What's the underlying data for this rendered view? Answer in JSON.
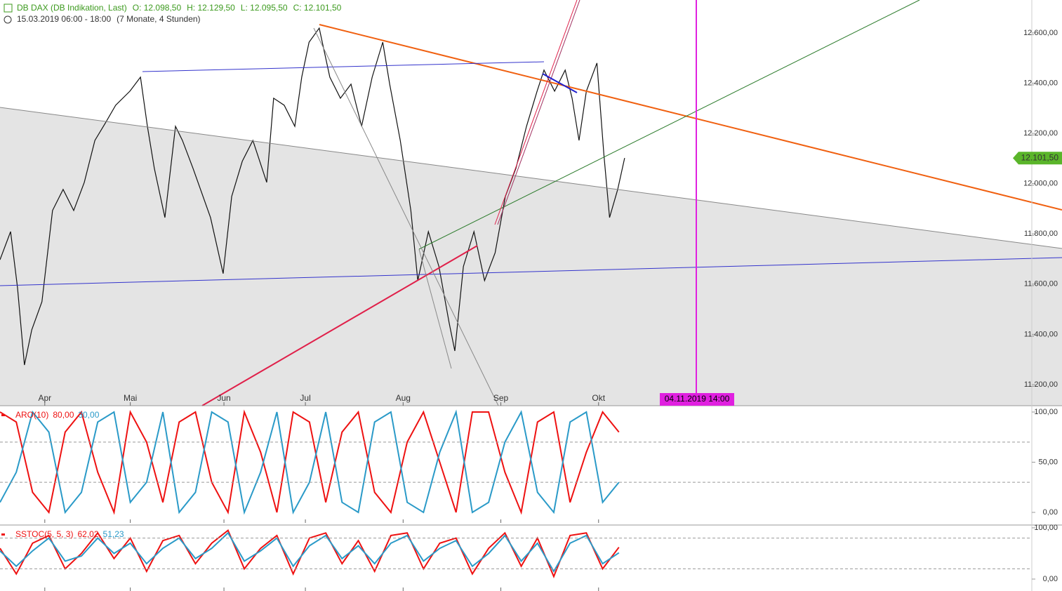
{
  "header": {
    "title": "DB DAX (DB Indikation, Last)",
    "ohlc": [
      "O: 12.098,50",
      "H: 12.129,50",
      "L: 12.095,50",
      "C: 12.101,50"
    ],
    "period": "15.03.2019 06:00 - 18:00",
    "span": "(7 Monate, 4 Stunden)"
  },
  "chart_data": [
    {
      "type": "line",
      "color": "#111111",
      "xlim": [
        0,
        253.4
      ],
      "ylim": [
        11116,
        12731
      ],
      "x": [
        0,
        2.6,
        4.3,
        6.0,
        7.8,
        10.3,
        12.9,
        15.5,
        18.1,
        20.7,
        23.3,
        25.9,
        28.4,
        31.9,
        34.5,
        36.2,
        37.9,
        40.5,
        43.1,
        44.8,
        47.4,
        51.7,
        54.8,
        56.9,
        59.5,
        62.1,
        65.5,
        67.2,
        69.8,
        72.4,
        74.1,
        75.9,
        78.4,
        81.0,
        83.6,
        86.2,
        88.8,
        91.4,
        94.0,
        95.7,
        98.3,
        100.9,
        102.6,
        105.2,
        107.8,
        110.3,
        111.7,
        113.8,
        116.4,
        119.0,
        121.6,
        124.1,
        126.7,
        129.3,
        131.9,
        133.6,
        136.2,
        138.8,
        140.5,
        142.2,
        144.0,
        146.6,
        148.3,
        149.7,
        151.7,
        153.4
      ],
      "values": [
        11697,
        11809,
        11586,
        11278,
        11418,
        11530,
        11893,
        11977,
        11893,
        12005,
        12172,
        12242,
        12312,
        12368,
        12424,
        12228,
        12061,
        11865,
        12228,
        12172,
        12061,
        11865,
        11642,
        11949,
        12089,
        12172,
        12005,
        12340,
        12312,
        12228,
        12424,
        12563,
        12619,
        12424,
        12340,
        12396,
        12228,
        12424,
        12563,
        12396,
        12172,
        11893,
        11614,
        11809,
        11670,
        11446,
        11334,
        11670,
        11809,
        11614,
        11725,
        11949,
        12061,
        12228,
        12368,
        12452,
        12368,
        12452,
        12340,
        12172,
        12368,
        12480,
        12117,
        11865,
        11977,
        12102
      ],
      "xticks": [
        {
          "value": 11,
          "label": "Apr"
        },
        {
          "value": 32,
          "label": "Mai"
        },
        {
          "value": 55,
          "label": "Jun"
        },
        {
          "value": 75,
          "label": "Jul"
        },
        {
          "value": 99,
          "label": "Aug"
        },
        {
          "value": 123,
          "label": "Sep"
        },
        {
          "value": 147,
          "label": "Okt"
        }
      ],
      "yticks": [
        {
          "value": 12600,
          "label": "12.600,00"
        },
        {
          "value": 12400,
          "label": "12.400,00"
        },
        {
          "value": 12200,
          "label": "12.200,00"
        },
        {
          "value": 12000,
          "label": "12.000,00"
        },
        {
          "value": 11800,
          "label": "11.800,00"
        },
        {
          "value": 11600,
          "label": "11.600,00"
        },
        {
          "value": 11400,
          "label": "11.400,00"
        },
        {
          "value": 11200,
          "label": "11.200,00"
        }
      ],
      "last_price": {
        "value": 12101.5,
        "label": "12.101,50"
      },
      "annotation": {
        "x": 171,
        "label": "04.11.2019 14:00",
        "color": "#e020e0"
      }
    },
    {
      "type": "line",
      "title": "ARO(10)",
      "xlim": [
        0,
        253.4
      ],
      "ylim": [
        -10.5,
        104.9
      ],
      "levels": [
        70,
        30
      ],
      "x": [
        0,
        4,
        8,
        12,
        16,
        20,
        24,
        28,
        32,
        36,
        40,
        44,
        48,
        52,
        56,
        60,
        64,
        68,
        72,
        76,
        80,
        84,
        88,
        92,
        96,
        100,
        104,
        108,
        112,
        116,
        120,
        124,
        128,
        132,
        136,
        140,
        144,
        148,
        152
      ],
      "series": [
        {
          "color": "#ee1111",
          "legend_value": "80,00",
          "values": [
            100,
            90,
            20,
            0,
            80,
            100,
            40,
            0,
            100,
            70,
            10,
            90,
            100,
            30,
            0,
            100,
            60,
            0,
            100,
            90,
            10,
            80,
            100,
            20,
            0,
            70,
            100,
            50,
            0,
            100,
            100,
            40,
            0,
            90,
            100,
            10,
            60,
            100,
            80
          ]
        },
        {
          "color": "#2a9ac8",
          "legend_value": "30,00",
          "values": [
            10,
            40,
            100,
            80,
            0,
            20,
            90,
            100,
            10,
            30,
            100,
            0,
            20,
            100,
            90,
            0,
            40,
            100,
            0,
            30,
            100,
            10,
            0,
            90,
            100,
            10,
            0,
            60,
            100,
            0,
            10,
            70,
            100,
            20,
            0,
            90,
            100,
            10,
            30
          ]
        }
      ],
      "yticks": [
        {
          "value": 100,
          "label": "100,00"
        },
        {
          "value": 50,
          "label": "50,00"
        },
        {
          "value": 0,
          "label": "0,00"
        }
      ]
    },
    {
      "type": "line",
      "title": "SSTOC(5, 5, 3)",
      "xlim": [
        0,
        253.4
      ],
      "ylim": [
        -23.3,
        102.7
      ],
      "levels": [
        80,
        20
      ],
      "x": [
        0,
        4,
        8,
        12,
        16,
        20,
        24,
        28,
        32,
        36,
        40,
        44,
        48,
        52,
        56,
        60,
        64,
        68,
        72,
        76,
        80,
        84,
        88,
        92,
        96,
        100,
        104,
        108,
        112,
        116,
        120,
        124,
        128,
        132,
        136,
        140,
        144,
        148,
        152
      ],
      "series": [
        {
          "color": "#ee1111",
          "legend_value": "62,02",
          "values": [
            60,
            10,
            70,
            85,
            20,
            50,
            90,
            40,
            80,
            15,
            75,
            85,
            30,
            70,
            95,
            20,
            60,
            85,
            10,
            80,
            90,
            30,
            75,
            15,
            85,
            90,
            20,
            70,
            80,
            10,
            60,
            90,
            25,
            80,
            5,
            85,
            90,
            20,
            62.02
          ]
        },
        {
          "color": "#2a9ac8",
          "legend_value": "51,23",
          "values": [
            55,
            25,
            55,
            80,
            35,
            45,
            80,
            50,
            70,
            30,
            60,
            80,
            40,
            60,
            90,
            35,
            55,
            80,
            25,
            65,
            85,
            40,
            65,
            30,
            70,
            85,
            35,
            60,
            75,
            25,
            50,
            85,
            35,
            70,
            15,
            70,
            85,
            30,
            51.23
          ]
        }
      ],
      "yticks": [
        {
          "value": 100,
          "label": "100,00"
        },
        {
          "value": 0,
          "label": "0,00"
        }
      ]
    }
  ]
}
